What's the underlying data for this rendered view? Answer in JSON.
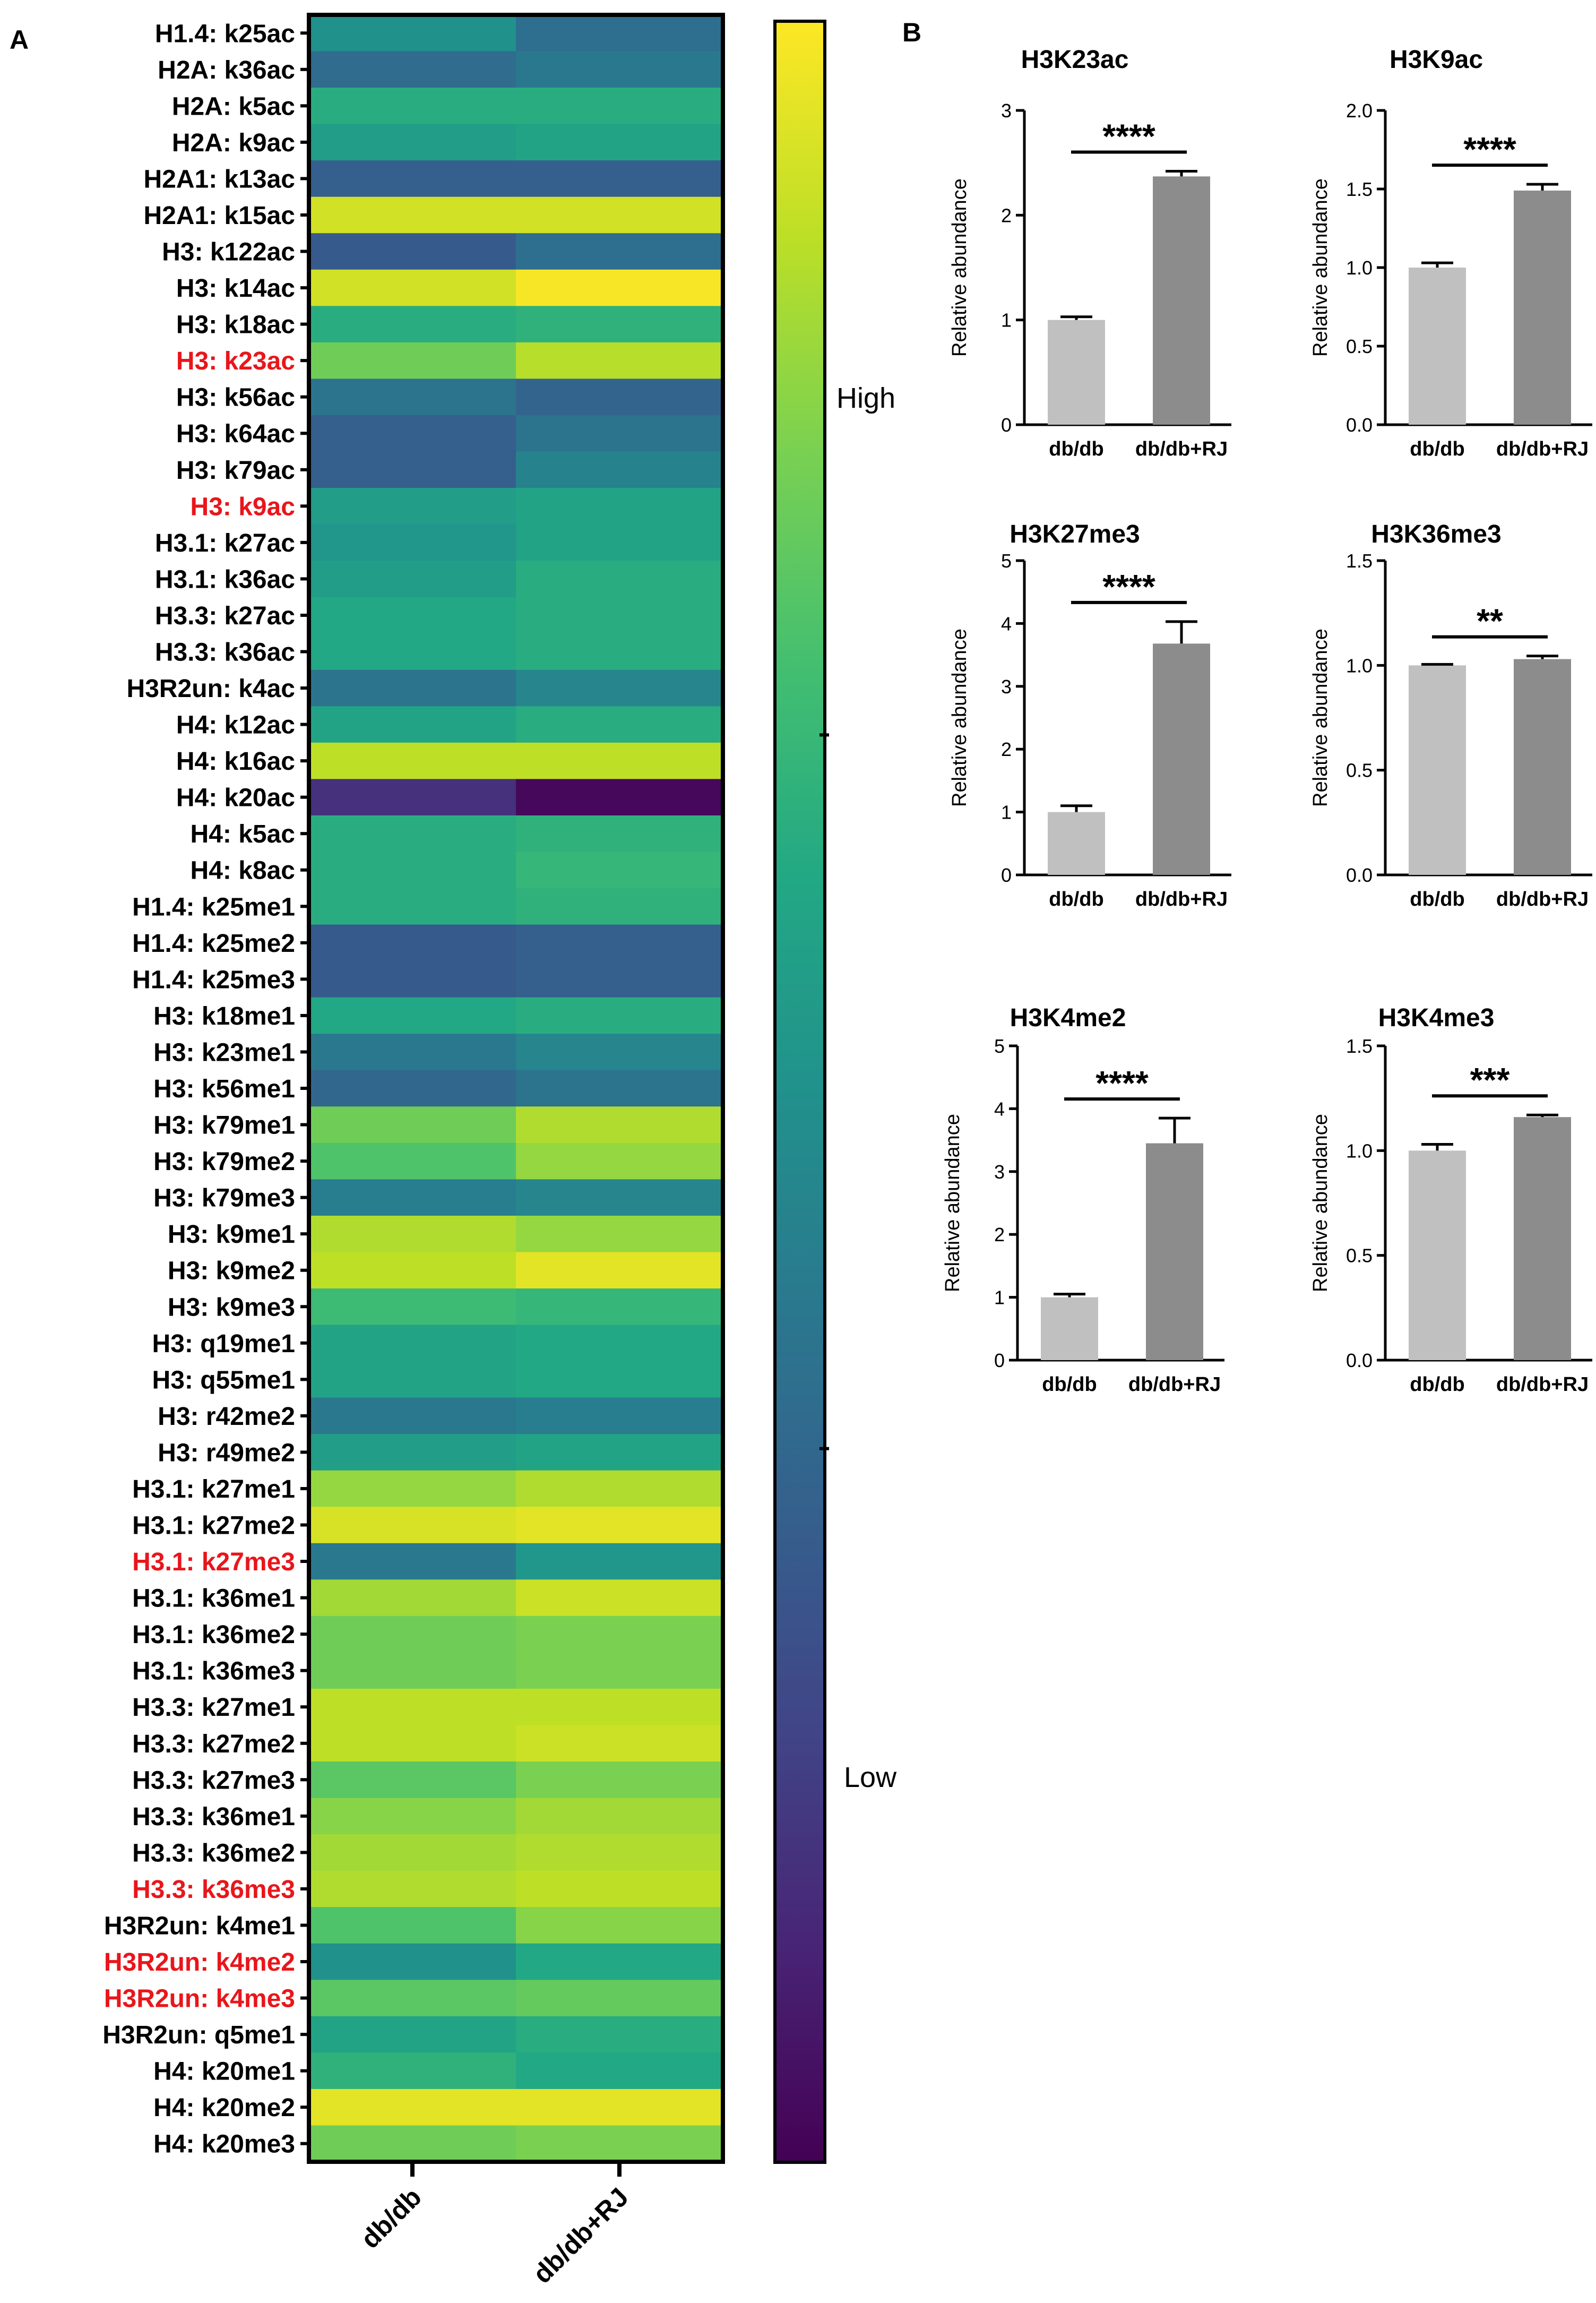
{
  "panels": {
    "a": "A",
    "b": "B"
  },
  "colors": {
    "highlight": "#e8161b",
    "text": "#000000",
    "bar_control": "#c0c0c0",
    "bar_treated": "#8c8c8c"
  },
  "chart_data": [
    {
      "type": "heatmap",
      "panel": "A",
      "columns": [
        "db/db",
        "db/db+RJ"
      ],
      "colorbar": {
        "high_label": "High",
        "low_label": "Low",
        "colormap": "viridis",
        "range": [
          0,
          1
        ]
      },
      "rows": [
        {
          "label": "H1.4: k25ac",
          "values": [
            0.5,
            0.36
          ],
          "highlight": false
        },
        {
          "label": "H2A: k36ac",
          "values": [
            0.35,
            0.4
          ],
          "highlight": false
        },
        {
          "label": "H2A: k5ac",
          "values": [
            0.62,
            0.62
          ],
          "highlight": false
        },
        {
          "label": "H2A: k9ac",
          "values": [
            0.55,
            0.58
          ],
          "highlight": false
        },
        {
          "label": "H2A1: k13ac",
          "values": [
            0.3,
            0.3
          ],
          "highlight": false
        },
        {
          "label": "H2A1: k15ac",
          "values": [
            0.93,
            0.93
          ],
          "highlight": false
        },
        {
          "label": "H3: k122ac",
          "values": [
            0.28,
            0.36
          ],
          "highlight": false
        },
        {
          "label": "H3: k14ac",
          "values": [
            0.93,
            0.99
          ],
          "highlight": false
        },
        {
          "label": "H3: k18ac",
          "values": [
            0.62,
            0.64
          ],
          "highlight": false
        },
        {
          "label": "H3: k23ac",
          "values": [
            0.78,
            0.89
          ],
          "highlight": true
        },
        {
          "label": "H3: k56ac",
          "values": [
            0.38,
            0.32
          ],
          "highlight": false
        },
        {
          "label": "H3: k64ac",
          "values": [
            0.3,
            0.38
          ],
          "highlight": false
        },
        {
          "label": "H3: k79ac",
          "values": [
            0.3,
            0.44
          ],
          "highlight": false
        },
        {
          "label": "H3: k9ac",
          "values": [
            0.55,
            0.58
          ],
          "highlight": true
        },
        {
          "label": "H3.1: k27ac",
          "values": [
            0.52,
            0.58
          ],
          "highlight": false
        },
        {
          "label": "H3.1: k36ac",
          "values": [
            0.55,
            0.62
          ],
          "highlight": false
        },
        {
          "label": "H3.3: k27ac",
          "values": [
            0.6,
            0.62
          ],
          "highlight": false
        },
        {
          "label": "H3.3: k36ac",
          "values": [
            0.6,
            0.62
          ],
          "highlight": false
        },
        {
          "label": "H3R2un: k4ac",
          "values": [
            0.38,
            0.45
          ],
          "highlight": false
        },
        {
          "label": "H4: k12ac",
          "values": [
            0.58,
            0.62
          ],
          "highlight": false
        },
        {
          "label": "H4: k16ac",
          "values": [
            0.9,
            0.9
          ],
          "highlight": false
        },
        {
          "label": "H4: k20ac",
          "values": [
            0.14,
            0.02
          ],
          "highlight": false
        },
        {
          "label": "H4: k5ac",
          "values": [
            0.62,
            0.64
          ],
          "highlight": false
        },
        {
          "label": "H4: k8ac",
          "values": [
            0.62,
            0.66
          ],
          "highlight": false
        },
        {
          "label": "H1.4: k25me1",
          "values": [
            0.62,
            0.64
          ],
          "highlight": false
        },
        {
          "label": "H1.4: k25me2",
          "values": [
            0.28,
            0.3
          ],
          "highlight": false
        },
        {
          "label": "H1.4: k25me3",
          "values": [
            0.28,
            0.3
          ],
          "highlight": false
        },
        {
          "label": "H3: k18me1",
          "values": [
            0.6,
            0.62
          ],
          "highlight": false
        },
        {
          "label": "H3: k23me1",
          "values": [
            0.4,
            0.45
          ],
          "highlight": false
        },
        {
          "label": "H3: k56me1",
          "values": [
            0.33,
            0.38
          ],
          "highlight": false
        },
        {
          "label": "H3: k79me1",
          "values": [
            0.78,
            0.88
          ],
          "highlight": false
        },
        {
          "label": "H3: k79me2",
          "values": [
            0.72,
            0.84
          ],
          "highlight": false
        },
        {
          "label": "H3: k79me3",
          "values": [
            0.42,
            0.45
          ],
          "highlight": false
        },
        {
          "label": "H3: k9me1",
          "values": [
            0.88,
            0.84
          ],
          "highlight": false
        },
        {
          "label": "H3: k9me2",
          "values": [
            0.9,
            0.96
          ],
          "highlight": false
        },
        {
          "label": "H3: k9me3",
          "values": [
            0.68,
            0.66
          ],
          "highlight": false
        },
        {
          "label": "H3: q19me1",
          "values": [
            0.58,
            0.6
          ],
          "highlight": false
        },
        {
          "label": "H3: q55me1",
          "values": [
            0.58,
            0.6
          ],
          "highlight": false
        },
        {
          "label": "H3: r42me2",
          "values": [
            0.4,
            0.42
          ],
          "highlight": false
        },
        {
          "label": "H3: r49me2",
          "values": [
            0.55,
            0.58
          ],
          "highlight": false
        },
        {
          "label": "H3.1: k27me1",
          "values": [
            0.84,
            0.88
          ],
          "highlight": false
        },
        {
          "label": "H3.1: k27me2",
          "values": [
            0.94,
            0.96
          ],
          "highlight": false
        },
        {
          "label": "H3.1: k27me3",
          "values": [
            0.4,
            0.52
          ],
          "highlight": true
        },
        {
          "label": "H3.1: k36me1",
          "values": [
            0.86,
            0.92
          ],
          "highlight": false
        },
        {
          "label": "H3.1: k36me2",
          "values": [
            0.78,
            0.8
          ],
          "highlight": false
        },
        {
          "label": "H3.1: k36me3",
          "values": [
            0.78,
            0.8
          ],
          "highlight": false
        },
        {
          "label": "H3.3: k27me1",
          "values": [
            0.9,
            0.9
          ],
          "highlight": false
        },
        {
          "label": "H3.3: k27me2",
          "values": [
            0.9,
            0.92
          ],
          "highlight": false
        },
        {
          "label": "H3.3: k27me3",
          "values": [
            0.74,
            0.8
          ],
          "highlight": false
        },
        {
          "label": "H3.3: k36me1",
          "values": [
            0.82,
            0.86
          ],
          "highlight": false
        },
        {
          "label": "H3.3: k36me2",
          "values": [
            0.86,
            0.88
          ],
          "highlight": false
        },
        {
          "label": "H3.3: k36me3",
          "values": [
            0.88,
            0.9
          ],
          "highlight": true
        },
        {
          "label": "H3R2un: k4me1",
          "values": [
            0.72,
            0.82
          ],
          "highlight": false
        },
        {
          "label": "H3R2un: k4me2",
          "values": [
            0.5,
            0.6
          ],
          "highlight": true
        },
        {
          "label": "H3R2un: k4me3",
          "values": [
            0.74,
            0.76
          ],
          "highlight": true
        },
        {
          "label": "H3R2un: q5me1",
          "values": [
            0.58,
            0.62
          ],
          "highlight": false
        },
        {
          "label": "H4: k20me1",
          "values": [
            0.64,
            0.6
          ],
          "highlight": false
        },
        {
          "label": "H4: k20me2",
          "values": [
            0.96,
            0.96
          ],
          "highlight": false
        },
        {
          "label": "H4: k20me3",
          "values": [
            0.78,
            0.8
          ],
          "highlight": false
        }
      ]
    },
    {
      "type": "bar",
      "panel": "B",
      "title": "H3K23ac",
      "ylabel": "Relative abundance",
      "categories": [
        "db/db",
        "db/db+RJ"
      ],
      "values": [
        1.0,
        2.37
      ],
      "errors": [
        0.03,
        0.05
      ],
      "ylim": [
        0,
        3
      ],
      "ticks": [
        "0",
        "1",
        "2",
        "3"
      ],
      "significance": "****"
    },
    {
      "type": "bar",
      "panel": "B",
      "title": "H3K9ac",
      "ylabel": "Relative abundance",
      "categories": [
        "db/db",
        "db/db+RJ"
      ],
      "values": [
        1.0,
        1.49
      ],
      "errors": [
        0.03,
        0.04
      ],
      "ylim": [
        0,
        2.0
      ],
      "ticks": [
        "0.0",
        "0.5",
        "1.0",
        "1.5",
        "2.0"
      ],
      "significance": "****"
    },
    {
      "type": "bar",
      "panel": "B",
      "title": "H3K27me3",
      "ylabel": "Relative abundance",
      "categories": [
        "db/db",
        "db/db+RJ"
      ],
      "values": [
        1.0,
        3.68
      ],
      "errors": [
        0.1,
        0.35
      ],
      "ylim": [
        0,
        5
      ],
      "ticks": [
        "0",
        "1",
        "2",
        "3",
        "4",
        "5"
      ],
      "significance": "****"
    },
    {
      "type": "bar",
      "panel": "B",
      "title": "H3K36me3",
      "ylabel": "Relative abundance",
      "categories": [
        "db/db",
        "db/db+RJ"
      ],
      "values": [
        1.0,
        1.03
      ],
      "errors": [
        0.005,
        0.015
      ],
      "ylim": [
        0,
        1.5
      ],
      "ticks": [
        "0.0",
        "0.5",
        "1.0",
        "1.5"
      ],
      "significance": "**"
    },
    {
      "type": "bar",
      "panel": "B",
      "title": "H3K4me2",
      "ylabel": "Relative abundance",
      "categories": [
        "db/db",
        "db/db+RJ"
      ],
      "values": [
        1.0,
        3.45
      ],
      "errors": [
        0.05,
        0.4
      ],
      "ylim": [
        0,
        5
      ],
      "ticks": [
        "0",
        "1",
        "2",
        "3",
        "4",
        "5"
      ],
      "significance": "****"
    },
    {
      "type": "bar",
      "panel": "B",
      "title": "H3K4me3",
      "ylabel": "Relative abundance",
      "categories": [
        "db/db",
        "db/db+RJ"
      ],
      "values": [
        1.0,
        1.16
      ],
      "errors": [
        0.03,
        0.01
      ],
      "ylim": [
        0,
        1.5
      ],
      "ticks": [
        "0.0",
        "0.5",
        "1.0",
        "1.5"
      ],
      "significance": "***"
    }
  ]
}
